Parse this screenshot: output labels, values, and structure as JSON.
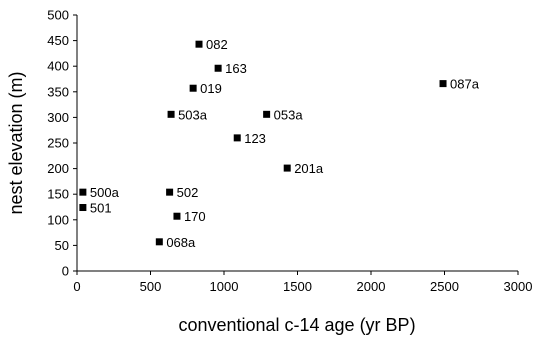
{
  "chart_data": {
    "type": "scatter",
    "title": "",
    "xlabel": "conventional c-14 age (yr BP)",
    "ylabel": "nest elevation (m)",
    "xlim": [
      0,
      3000
    ],
    "ylim": [
      0,
      500
    ],
    "xticks": [
      0,
      500,
      1000,
      1500,
      2000,
      2500,
      3000
    ],
    "yticks": [
      0,
      50,
      100,
      150,
      200,
      250,
      300,
      350,
      400,
      450,
      500
    ],
    "grid": false,
    "legend": "none",
    "marker": "square",
    "marker_color": "#000000",
    "points": [
      {
        "label": "082",
        "x": 830,
        "y": 443
      },
      {
        "label": "163",
        "x": 960,
        "y": 396
      },
      {
        "label": "087a",
        "x": 2490,
        "y": 366
      },
      {
        "label": "019",
        "x": 790,
        "y": 357
      },
      {
        "label": "503a",
        "x": 640,
        "y": 306
      },
      {
        "label": "053a",
        "x": 1290,
        "y": 306
      },
      {
        "label": "123",
        "x": 1090,
        "y": 260
      },
      {
        "label": "201a",
        "x": 1430,
        "y": 201
      },
      {
        "label": "500a",
        "x": 40,
        "y": 154
      },
      {
        "label": "502",
        "x": 630,
        "y": 154
      },
      {
        "label": "501",
        "x": 40,
        "y": 124
      },
      {
        "label": "170",
        "x": 680,
        "y": 107
      },
      {
        "label": "068a",
        "x": 560,
        "y": 57
      }
    ]
  }
}
